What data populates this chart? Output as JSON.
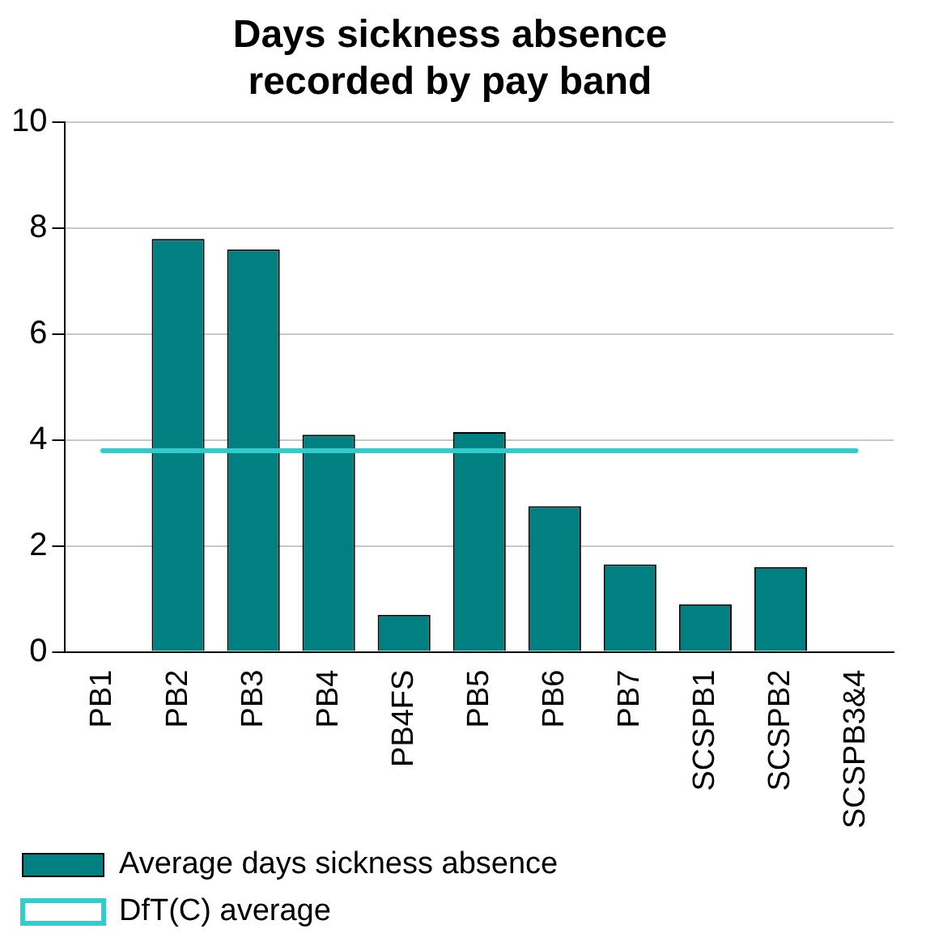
{
  "chart_data": {
    "type": "bar",
    "title": "Days sickness absence recorded by pay band",
    "categories": [
      "PB1",
      "PB2",
      "PB3",
      "PB4",
      "PB4FS",
      "PB5",
      "PB6",
      "PB7",
      "SCSPB1",
      "SCSPB2",
      "SCSPB3&4"
    ],
    "series": [
      {
        "name": "Average days sickness absence",
        "color": "#008080",
        "values": [
          null,
          7.8,
          7.6,
          4.1,
          0.7,
          4.15,
          2.75,
          1.65,
          0.9,
          1.6,
          null
        ]
      },
      {
        "name": "DfT(C) average",
        "type": "line",
        "color": "#33cccc",
        "values": [
          3.8,
          3.8,
          3.8,
          3.8,
          3.8,
          3.8,
          3.8,
          3.8,
          3.8,
          3.8,
          3.8
        ]
      }
    ],
    "ylim": [
      0,
      10
    ],
    "yticks": [
      0,
      2,
      4,
      6,
      8,
      10
    ],
    "grid": "y",
    "legend": "bottom",
    "marker": "none"
  }
}
